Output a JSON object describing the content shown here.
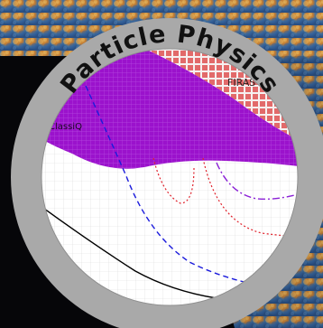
{
  "badge": {
    "title": "Particle Physics"
  },
  "plot": {
    "labels": {
      "firas": "FIRAS",
      "purple_region": "ClassiQ"
    }
  },
  "colors": {
    "background": "#060609",
    "cmb_sky": "#c9873a",
    "ring": "#a9a9a9",
    "ring_text": "#111111",
    "plot_bg": "#ffffff",
    "grid": "#d8d8d8",
    "purple_fill": "#9b12cc",
    "checker_fill": "#e26a6a",
    "blue_dashed": "#1b1bdc",
    "red_dotted": "#e0202a",
    "purple_dashdot": "#8a1fd6",
    "black_line": "#000000"
  }
}
